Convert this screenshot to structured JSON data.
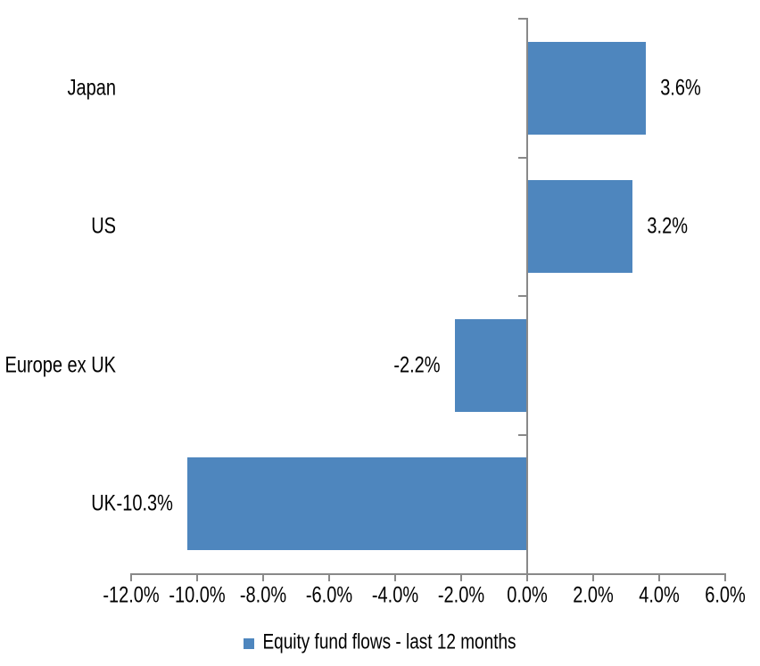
{
  "chart_data": {
    "type": "bar",
    "orientation": "horizontal",
    "title": "",
    "categories": [
      "Japan",
      "US",
      "Europe ex UK",
      "UK"
    ],
    "values": [
      3.6,
      3.2,
      -2.2,
      -10.3
    ],
    "value_labels": [
      "3.6%",
      "3.2%",
      "-2.2%",
      "-10.3%"
    ],
    "series_name": "Equity fund flows - last 12 months",
    "xlim": [
      -12,
      6
    ],
    "x_ticks": [
      -12,
      -10,
      -8,
      -6,
      -4,
      -2,
      0,
      2,
      4,
      6
    ],
    "x_tick_labels": [
      "-12.0%",
      "-10.0%",
      "-8.0%",
      "-6.0%",
      "-4.0%",
      "-2.0%",
      "0.0%",
      "2.0%",
      "4.0%",
      "6.0%"
    ],
    "grid": false,
    "legend_position": "bottom",
    "bar_color": "#4E86BE",
    "axis_color": "#898989",
    "text_color": "#000000"
  },
  "legend": {
    "label": "Equity fund flows - last 12 months",
    "marker_color": "#4E86BE"
  }
}
